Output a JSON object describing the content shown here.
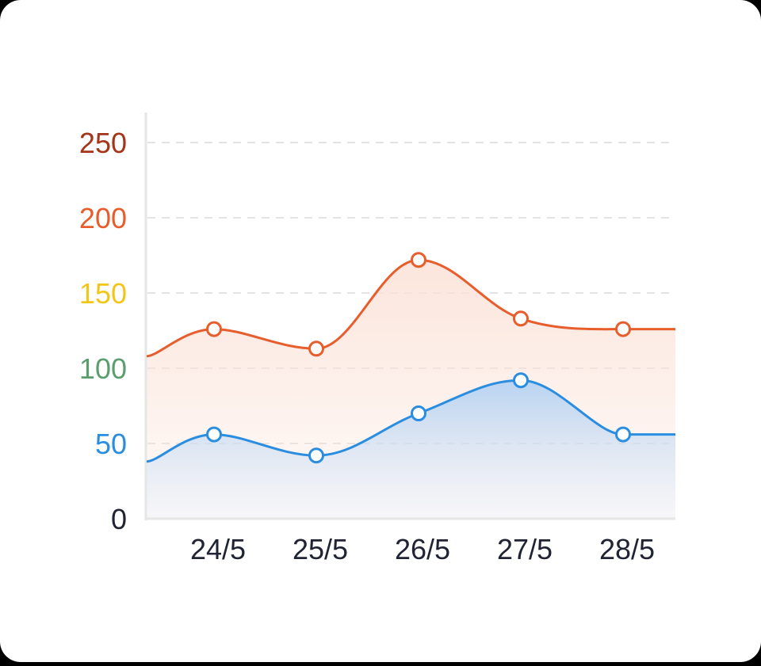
{
  "chart_data": {
    "type": "area",
    "x": [
      "24/5",
      "25/5",
      "26/5",
      "27/5",
      "28/5"
    ],
    "series": [
      {
        "values": [
          126,
          113,
          172,
          133,
          126
        ],
        "start_value": 108,
        "end_value": 126,
        "color": "#e85d2c",
        "fill_color": "#fbe3da"
      },
      {
        "values": [
          56,
          42,
          70,
          92,
          56
        ],
        "start_value": 38,
        "end_value": 56,
        "color": "#2a8de0",
        "fill_color": "#bcd6f3"
      }
    ],
    "y_ticks": [
      {
        "value": 0,
        "label": "0",
        "color": "#1f2333"
      },
      {
        "value": 50,
        "label": "50",
        "color": "#2a8de0"
      },
      {
        "value": 100,
        "label": "100",
        "color": "#5a9e6f"
      },
      {
        "value": 150,
        "label": "150",
        "color": "#f2c618"
      },
      {
        "value": 200,
        "label": "200",
        "color": "#e85d2c"
      },
      {
        "value": 250,
        "label": "250",
        "color": "#a3361a"
      }
    ],
    "ylim": [
      0,
      250
    ],
    "grid": "dashed horizontal",
    "axis_color": "#e6e6e6",
    "grid_color": "#e3e3e3"
  }
}
